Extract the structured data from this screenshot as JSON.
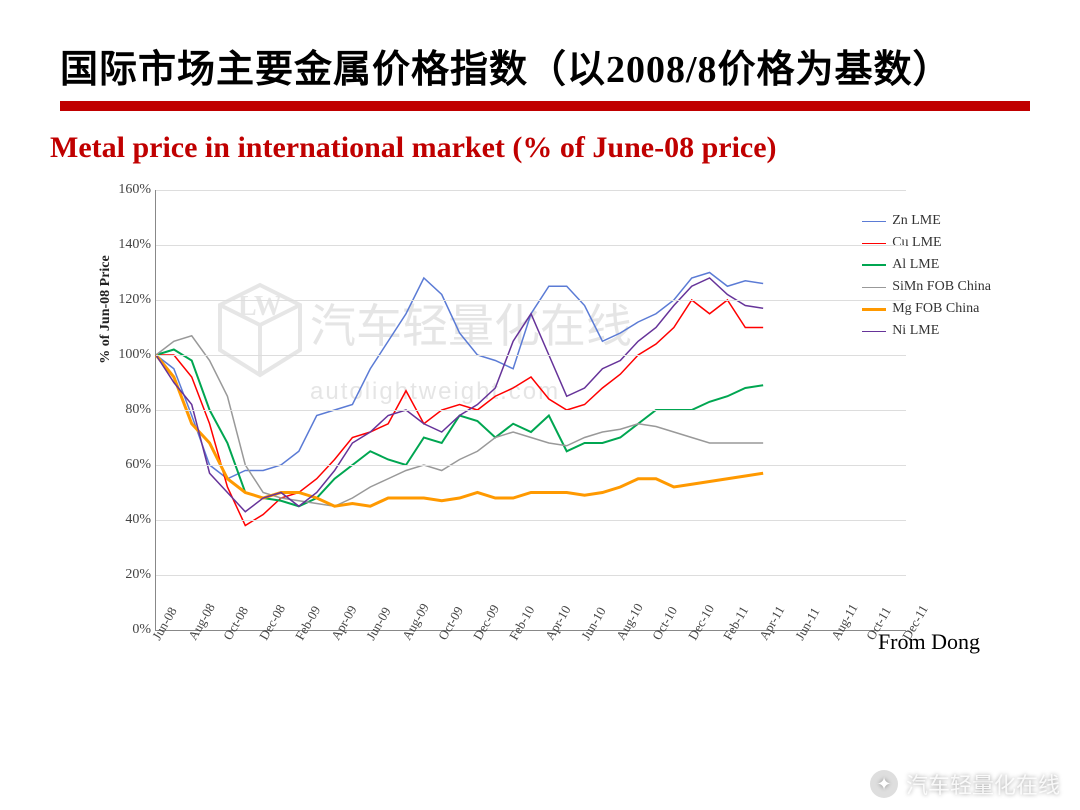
{
  "title_cn": "国际市场主要金属价格指数（以2008/8价格为基数）",
  "subtitle_en": "Metal price in international market (% of June-08 price)",
  "ylabel": "% of Jun-08 Price",
  "attribution": "From Dong",
  "watermark_main": "汽车轻量化在线",
  "watermark_sub": "autolightweight.com",
  "bottom_watermark": "汽车轻量化在线",
  "chart": {
    "type": "line",
    "ylim": [
      0,
      160
    ],
    "ytick_step": 20,
    "ytick_suffix": "%",
    "grid_color": "#dddddd",
    "axis_color": "#888888",
    "background": "#ffffff",
    "label_fontsize": 14,
    "line_width": 2,
    "x_labels": [
      "Jun-08",
      "Aug-08",
      "Oct-08",
      "Dec-08",
      "Feb-09",
      "Apr-09",
      "Jun-09",
      "Aug-09",
      "Oct-09",
      "Dec-09",
      "Feb-10",
      "Apr-10",
      "Jun-10",
      "Aug-10",
      "Oct-10",
      "Dec-10",
      "Feb-11",
      "Apr-11",
      "Jun-11",
      "Aug-11",
      "Oct-11",
      "Dec-11"
    ],
    "series": [
      {
        "name": "Zn LME",
        "color": "#5b7bd5",
        "width": 1.5,
        "y": [
          100,
          95,
          78,
          60,
          55,
          58,
          58,
          60,
          65,
          78,
          80,
          82,
          95,
          105,
          115,
          128,
          122,
          108,
          100,
          98,
          95,
          115,
          125,
          125,
          118,
          105,
          108,
          112,
          115,
          120,
          128,
          130,
          125,
          127,
          126
        ]
      },
      {
        "name": "Cu LME",
        "color": "#ff0000",
        "width": 1.5,
        "y": [
          100,
          100,
          92,
          75,
          52,
          38,
          42,
          48,
          50,
          55,
          62,
          70,
          72,
          75,
          87,
          75,
          80,
          82,
          80,
          85,
          88,
          92,
          84,
          80,
          82,
          88,
          93,
          100,
          104,
          110,
          120,
          115,
          120,
          110,
          110
        ]
      },
      {
        "name": "Al LME",
        "color": "#00a651",
        "width": 2,
        "y": [
          100,
          102,
          98,
          80,
          68,
          50,
          48,
          47,
          45,
          48,
          55,
          60,
          65,
          62,
          60,
          70,
          68,
          78,
          76,
          70,
          75,
          72,
          78,
          65,
          68,
          68,
          70,
          75,
          80,
          80,
          80,
          83,
          85,
          88,
          89
        ]
      },
      {
        "name": "SiMn FOB China",
        "color": "#999999",
        "width": 1.5,
        "y": [
          100,
          105,
          107,
          98,
          85,
          60,
          50,
          48,
          47,
          46,
          45,
          48,
          52,
          55,
          58,
          60,
          58,
          62,
          65,
          70,
          72,
          70,
          68,
          67,
          70,
          72,
          73,
          75,
          74,
          72,
          70,
          68,
          68,
          68,
          68
        ]
      },
      {
        "name": "Mg FOB China",
        "color": "#ff9900",
        "width": 3,
        "y": [
          100,
          92,
          75,
          68,
          55,
          50,
          48,
          50,
          50,
          48,
          45,
          46,
          45,
          48,
          48,
          48,
          47,
          48,
          50,
          48,
          48,
          50,
          50,
          50,
          49,
          50,
          52,
          55,
          55,
          52,
          53,
          54,
          55,
          56,
          57
        ]
      },
      {
        "name": "Ni LME",
        "color": "#663399",
        "width": 1.5,
        "y": [
          100,
          90,
          82,
          57,
          50,
          43,
          48,
          50,
          45,
          50,
          58,
          68,
          72,
          78,
          80,
          75,
          72,
          78,
          82,
          88,
          105,
          115,
          100,
          85,
          88,
          95,
          98,
          105,
          110,
          118,
          125,
          128,
          122,
          118,
          117
        ]
      }
    ]
  }
}
